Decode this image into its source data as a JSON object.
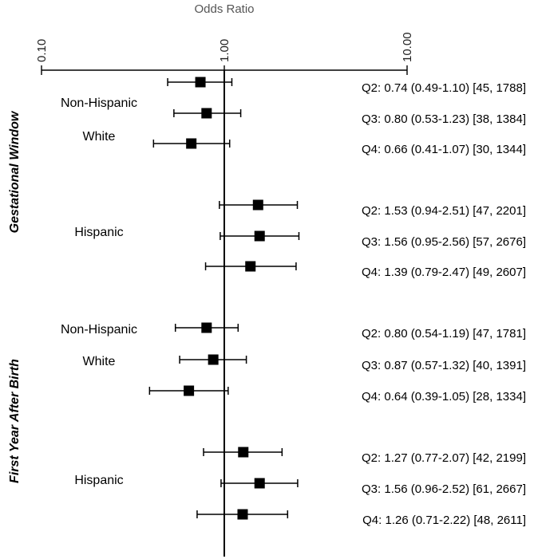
{
  "chart_data": {
    "type": "forest",
    "xlabel": "Odds Ratio",
    "xscale": "log",
    "xlim": [
      0.1,
      10
    ],
    "x_ticks": [
      0.1,
      1,
      10
    ],
    "x_tick_labels": [
      "0.10",
      "1.00",
      "10.00"
    ],
    "reference_line": 1,
    "windows": [
      {
        "name": "Gestational Window",
        "groups": [
          {
            "name_lines": [
              "Non-Hispanic",
              "White"
            ],
            "rows": [
              {
                "or": 0.74,
                "lo": 0.49,
                "hi": 1.1,
                "label": "Q2: 0.74 (0.49-1.10) [45, 1788]"
              },
              {
                "or": 0.8,
                "lo": 0.53,
                "hi": 1.23,
                "label": "Q3: 0.80 (0.53-1.23) [38, 1384]"
              },
              {
                "or": 0.66,
                "lo": 0.41,
                "hi": 1.07,
                "label": "Q4: 0.66 (0.41-1.07) [30, 1344]"
              }
            ]
          },
          {
            "name_lines": [
              "Hispanic"
            ],
            "rows": [
              {
                "or": 1.53,
                "lo": 0.94,
                "hi": 2.51,
                "label": "Q2: 1.53 (0.94-2.51) [47, 2201]"
              },
              {
                "or": 1.56,
                "lo": 0.95,
                "hi": 2.56,
                "label": "Q3: 1.56 (0.95-2.56) [57, 2676]"
              },
              {
                "or": 1.39,
                "lo": 0.79,
                "hi": 2.47,
                "label": "Q4: 1.39 (0.79-2.47) [49, 2607]"
              }
            ]
          }
        ]
      },
      {
        "name": "First Year After Birth",
        "groups": [
          {
            "name_lines": [
              "Non-Hispanic",
              "White"
            ],
            "rows": [
              {
                "or": 0.8,
                "lo": 0.54,
                "hi": 1.19,
                "label": "Q2: 0.80 (0.54-1.19) [47, 1781]"
              },
              {
                "or": 0.87,
                "lo": 0.57,
                "hi": 1.32,
                "label": "Q3: 0.87 (0.57-1.32) [40, 1391]"
              },
              {
                "or": 0.64,
                "lo": 0.39,
                "hi": 1.05,
                "label": "Q4: 0.64 (0.39-1.05) [28, 1334]"
              }
            ]
          },
          {
            "name_lines": [
              "Hispanic"
            ],
            "rows": [
              {
                "or": 1.27,
                "lo": 0.77,
                "hi": 2.07,
                "label": "Q2: 1.27 (0.77-2.07) [42, 2199]"
              },
              {
                "or": 1.56,
                "lo": 0.96,
                "hi": 2.52,
                "label": "Q3: 1.56 (0.96-2.52) [61, 2667]"
              },
              {
                "or": 1.26,
                "lo": 0.71,
                "hi": 2.22,
                "label": "Q4: 1.26 (0.71-2.22) [48, 2611]"
              }
            ]
          }
        ]
      }
    ]
  },
  "colors": {
    "marker": "#000000",
    "axis": "#000000",
    "title": "#555555"
  }
}
